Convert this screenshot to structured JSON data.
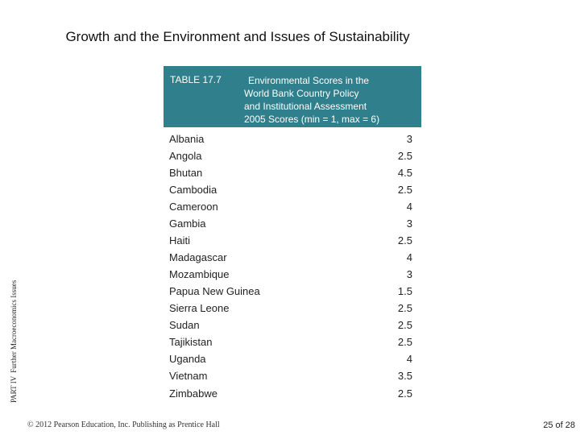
{
  "slide": {
    "title": "Growth and the Environment and Issues of Sustainability",
    "side_part": "PART IV",
    "side_section": "Further Macroeconomics Issues"
  },
  "table": {
    "number": "TABLE 17.7",
    "description_lines": [
      "Environmental Scores in the",
      "World Bank Country Policy",
      "and Institutional Assessment",
      "2005 Scores (min = 1, max = 6)"
    ],
    "rows": [
      {
        "country": "Albania",
        "score": "3"
      },
      {
        "country": "Angola",
        "score": "2.5"
      },
      {
        "country": "Bhutan",
        "score": "4.5"
      },
      {
        "country": "Cambodia",
        "score": "2.5"
      },
      {
        "country": "Cameroon",
        "score": "4"
      },
      {
        "country": "Gambia",
        "score": "3"
      },
      {
        "country": "Haiti",
        "score": "2.5"
      },
      {
        "country": "Madagascar",
        "score": "4"
      },
      {
        "country": "Mozambique",
        "score": "3"
      },
      {
        "country": "Papua New Guinea",
        "score": "1.5"
      },
      {
        "country": "Sierra Leone",
        "score": "2.5"
      },
      {
        "country": "Sudan",
        "score": "2.5"
      },
      {
        "country": "Tajikistan",
        "score": "2.5"
      },
      {
        "country": "Uganda",
        "score": "4"
      },
      {
        "country": "Vietnam",
        "score": "3.5"
      },
      {
        "country": "Zimbabwe",
        "score": "2.5"
      }
    ]
  },
  "footer": {
    "copyright": "© 2012 Pearson Education, Inc. Publishing as Prentice Hall",
    "page": "25 of 28"
  },
  "colors": {
    "header_bg": "#2f7f8c"
  }
}
